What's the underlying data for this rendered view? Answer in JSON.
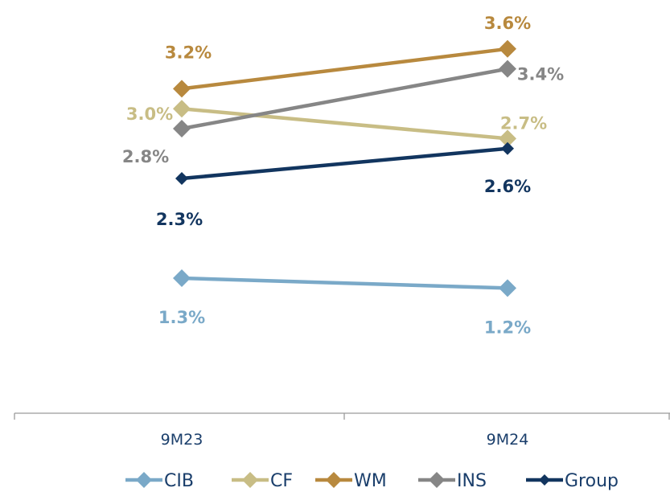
{
  "chart_data": {
    "type": "line",
    "categories": [
      "9M23",
      "9M24"
    ],
    "series": [
      {
        "name": "CIB",
        "values": [
          1.3,
          1.2
        ],
        "labels": [
          "1.3%",
          "1.2%"
        ],
        "color": "#7aa9c8"
      },
      {
        "name": "CF",
        "values": [
          3.0,
          2.7
        ],
        "labels": [
          "3.0%",
          "2.7%"
        ],
        "color": "#c8bd85"
      },
      {
        "name": "WM",
        "values": [
          3.2,
          3.6
        ],
        "labels": [
          "3.2%",
          "3.6%"
        ],
        "color": "#b8893e"
      },
      {
        "name": "INS",
        "values": [
          2.8,
          3.4
        ],
        "labels": [
          "2.8%",
          "3.4%"
        ],
        "color": "#868686"
      },
      {
        "name": "Group",
        "values": [
          2.3,
          2.6
        ],
        "labels": [
          "2.3%",
          "2.6%"
        ],
        "color": "#12355f"
      }
    ],
    "legend": "bottom",
    "grid": false
  }
}
